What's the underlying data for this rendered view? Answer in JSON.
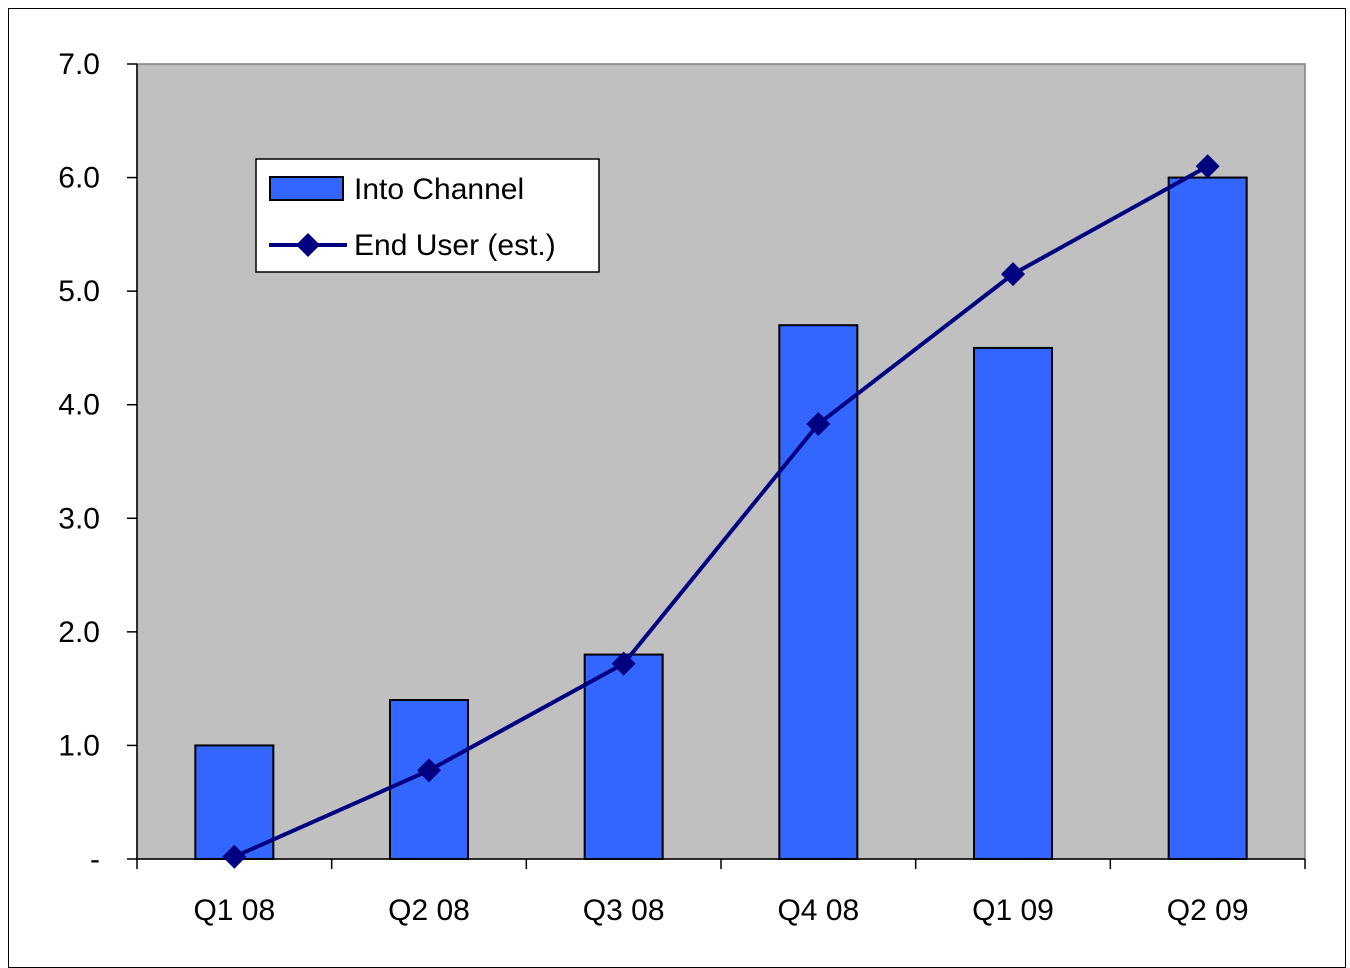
{
  "chart_data": {
    "type": "bar",
    "categories": [
      "Q1 08",
      "Q2 08",
      "Q3 08",
      "Q4 08",
      "Q1 09",
      "Q2 09"
    ],
    "series": [
      {
        "name": "Into Channel",
        "kind": "bar",
        "values": [
          1.0,
          1.4,
          1.8,
          4.7,
          4.5,
          6.0
        ],
        "color": "#3366ff"
      },
      {
        "name": "End User (est.)",
        "kind": "line",
        "marker": "diamond",
        "values": [
          0.02,
          0.78,
          1.72,
          3.83,
          5.15,
          6.1
        ],
        "color": "#000080"
      }
    ],
    "yticks": [
      {
        "value": 0,
        "label": "-"
      },
      {
        "value": 1,
        "label": "1.0"
      },
      {
        "value": 2,
        "label": "2.0"
      },
      {
        "value": 3,
        "label": "3.0"
      },
      {
        "value": 4,
        "label": "4.0"
      },
      {
        "value": 5,
        "label": "5.0"
      },
      {
        "value": 6,
        "label": "6.0"
      },
      {
        "value": 7,
        "label": "7.0"
      }
    ],
    "ylim": [
      0,
      7
    ],
    "title": "",
    "xlabel": "",
    "ylabel": "",
    "grid": false,
    "plot_background": "#c0c0c0",
    "legend_position": "top-left"
  }
}
